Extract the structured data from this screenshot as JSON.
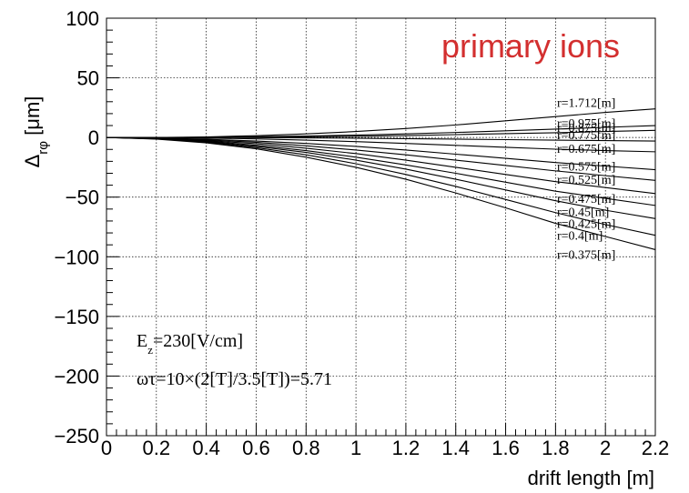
{
  "chart_data": {
    "type": "line",
    "title": "primary ions",
    "title_color": "#d32f2f",
    "xlabel": "drift length [m]",
    "ylabel": "Δ_rφ [μm]",
    "ylabel_main": "Δ",
    "ylabel_sub": "rφ",
    "ylabel_unit": " [μm]",
    "xlim": [
      0,
      2.2
    ],
    "ylim": [
      -250,
      100
    ],
    "grid": true,
    "x_ticks": [
      0,
      0.2,
      0.4,
      0.6,
      0.8,
      1,
      1.2,
      1.4,
      1.6,
      1.8,
      2,
      2.2
    ],
    "x_tick_labels": [
      "0",
      "0.2",
      "0.4",
      "0.6",
      "0.8",
      "1",
      "1.2",
      "1.4",
      "1.6",
      "1.8",
      "2",
      "2.2"
    ],
    "y_ticks": [
      -250,
      -200,
      -150,
      -100,
      -50,
      0,
      50,
      100
    ],
    "y_tick_labels": [
      "−250",
      "−200",
      "−150",
      "−100",
      "−50",
      "0",
      "50",
      "100"
    ],
    "x": [
      0,
      0.2,
      0.4,
      0.6,
      0.8,
      1.0,
      1.2,
      1.4,
      1.6,
      1.8,
      2.0,
      2.2
    ],
    "series": [
      {
        "name": "r=1.712[m]",
        "values": [
          0,
          0,
          0.5,
          1.5,
          3,
          5,
          7.5,
          10.5,
          14,
          17.5,
          21,
          24
        ]
      },
      {
        "name": "r=0.975[m]",
        "values": [
          0,
          0,
          0.2,
          0.6,
          1.2,
          2,
          3,
          4.2,
          5.6,
          7,
          8.5,
          10
        ]
      },
      {
        "name": "r=0.875[m]",
        "values": [
          0,
          0,
          0.1,
          0.3,
          0.6,
          1,
          1.6,
          2.4,
          3.2,
          4,
          5,
          6
        ]
      },
      {
        "name": "r=0.775[m]",
        "values": [
          0,
          0,
          0,
          -0.1,
          -0.3,
          -0.6,
          -1,
          -1.4,
          -1.8,
          -2.2,
          -2.6,
          -3
        ]
      },
      {
        "name": "r=0.675[m]",
        "values": [
          0,
          0,
          -0.5,
          -1.2,
          -2.2,
          -3.5,
          -5,
          -6.6,
          -8.2,
          -9.8,
          -11,
          -12
        ]
      },
      {
        "name": "r=0.575[m]",
        "values": [
          0,
          -0.5,
          -1.5,
          -3,
          -5,
          -7.5,
          -10.5,
          -14,
          -17.5,
          -21,
          -24,
          -27
        ]
      },
      {
        "name": "r=0.525[m]",
        "values": [
          0,
          -0.6,
          -2,
          -4,
          -7,
          -10.5,
          -14.5,
          -19,
          -23.5,
          -28,
          -32,
          -36
        ]
      },
      {
        "name": "r=0.475[m]",
        "values": [
          0,
          -0.8,
          -2.5,
          -5.2,
          -9,
          -13.5,
          -19,
          -25,
          -31,
          -37,
          -42,
          -47
        ]
      },
      {
        "name": "r=0.45[m]",
        "values": [
          0,
          -1,
          -3,
          -6.5,
          -11,
          -16.5,
          -23,
          -30,
          -37.5,
          -45,
          -51,
          -57
        ]
      },
      {
        "name": "r=0.425[m]",
        "values": [
          0,
          -1,
          -3.5,
          -7.5,
          -12.5,
          -19,
          -26.5,
          -35,
          -44,
          -53,
          -61,
          -68
        ]
      },
      {
        "name": "r=0.4[m]",
        "values": [
          0,
          -1.2,
          -4,
          -8.5,
          -14.5,
          -22,
          -31,
          -41,
          -52,
          -63,
          -73,
          -82
        ]
      },
      {
        "name": "r=0.375[m]",
        "values": [
          0,
          -1.4,
          -4.5,
          -9.5,
          -16.5,
          -25,
          -35,
          -46.5,
          -59,
          -72,
          -83,
          -94
        ]
      }
    ],
    "series_labels": [
      {
        "text": "r=1.712[m]",
        "y_value": 29.5
      },
      {
        "text": "r=0.975[m]",
        "y_value": 12.5
      },
      {
        "text": "r=0.875[m]",
        "y_value": 8.5
      },
      {
        "text": "r=0.775[m]",
        "y_value": 2.5
      },
      {
        "text": "r=0.675[m]",
        "y_value": -9
      },
      {
        "text": "r=0.575[m]",
        "y_value": -24
      },
      {
        "text": "r=0.525[m]",
        "y_value": -35
      },
      {
        "text": "r=0.475[m]",
        "y_value": -51
      },
      {
        "text": "r=0.45[m]",
        "y_value": -62
      },
      {
        "text": "r=0.425[m]",
        "y_value": -72
      },
      {
        "text": "r=0.4[m]",
        "y_value": -82
      },
      {
        "text": "r=0.375[m]",
        "y_value": -98
      }
    ],
    "annotations": [
      {
        "main": "E",
        "sub": "z",
        "rest": "=230[V/cm]"
      },
      {
        "main": "ωτ=10×(2[T]/3.5[T])=5.71"
      }
    ]
  }
}
